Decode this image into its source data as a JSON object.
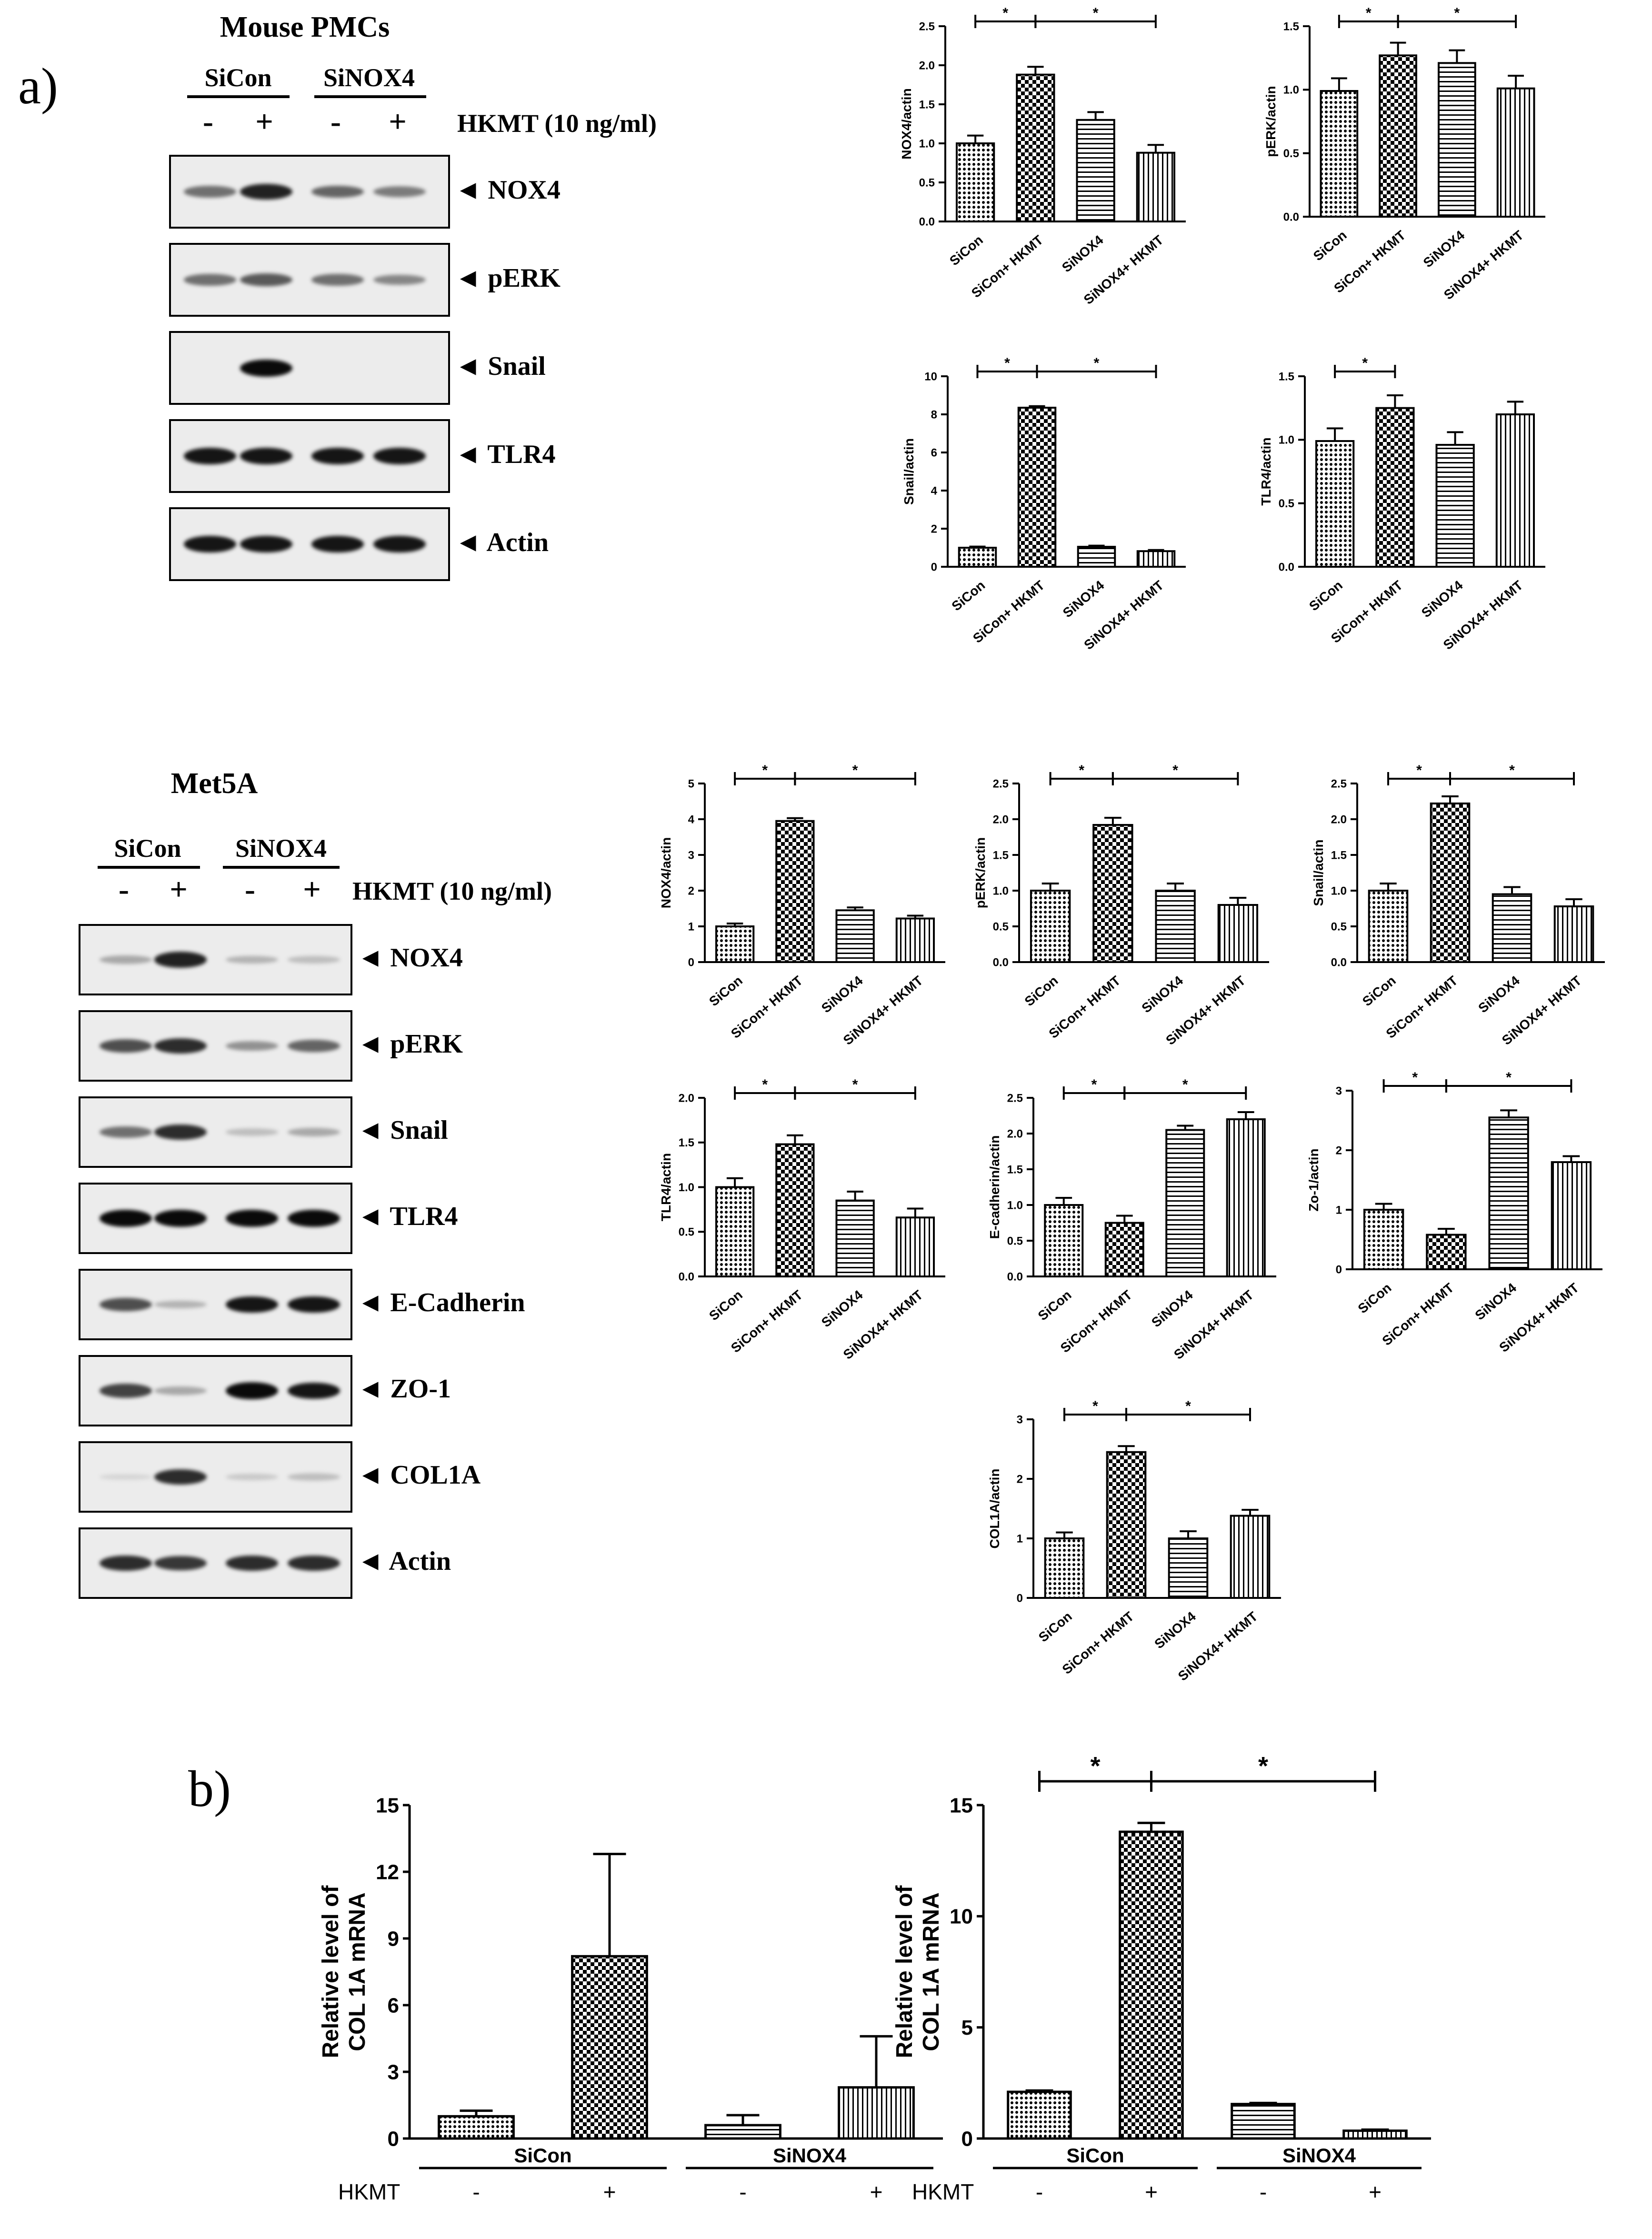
{
  "panels": {
    "a": "a)",
    "b": "b)"
  },
  "pattern_fills": {
    "checker": "#000000",
    "hatch": "#000000",
    "bar_stroke": "#000000"
  },
  "blot_mouse": {
    "title": "Mouse PMCs",
    "group1": "SiCon",
    "group2": "SiNOX4",
    "treatment": "HKMT (10 ng/ml)",
    "signs": [
      "-",
      "+",
      "-",
      "+"
    ],
    "bands": [
      {
        "label": "NOX4",
        "intensities": [
          0.55,
          0.9,
          0.6,
          0.5
        ]
      },
      {
        "label": "pERK",
        "intensities": [
          0.55,
          0.65,
          0.55,
          0.45
        ]
      },
      {
        "label": "Snail",
        "intensities": [
          0.0,
          1.0,
          0.0,
          0.0
        ]
      },
      {
        "label": "TLR4",
        "intensities": [
          0.95,
          0.95,
          0.95,
          0.95
        ]
      },
      {
        "label": "Actin",
        "intensities": [
          0.95,
          0.95,
          0.95,
          0.95
        ]
      }
    ]
  },
  "blot_met5a": {
    "title": "Met5A",
    "group1": "SiCon",
    "group2": "SiNOX4",
    "treatment": "HKMT (10 ng/ml)",
    "signs": [
      "-",
      "+",
      "-",
      "+"
    ],
    "bands": [
      {
        "label": "NOX4",
        "intensities": [
          0.3,
          0.9,
          0.25,
          0.2
        ]
      },
      {
        "label": "pERK",
        "intensities": [
          0.7,
          0.85,
          0.4,
          0.6
        ]
      },
      {
        "label": "Snail",
        "intensities": [
          0.55,
          0.85,
          0.2,
          0.3
        ]
      },
      {
        "label": "TLR4",
        "intensities": [
          1.0,
          1.0,
          1.0,
          1.0
        ]
      },
      {
        "label": "E-Cadherin",
        "intensities": [
          0.7,
          0.25,
          0.95,
          0.95
        ]
      },
      {
        "label": "ZO-1",
        "intensities": [
          0.75,
          0.3,
          1.0,
          0.95
        ]
      },
      {
        "label": "COL1A",
        "intensities": [
          0.1,
          0.85,
          0.15,
          0.2
        ]
      },
      {
        "label": "Actin",
        "intensities": [
          0.85,
          0.8,
          0.85,
          0.85
        ]
      }
    ]
  },
  "chart_data": [
    {
      "type": "bar",
      "ylabel": "NOX4/actin",
      "categories": [
        "SiCon",
        "SiCon+ HKMT",
        "SiNOX4",
        "SiNOX4+ HKMT"
      ],
      "values": [
        1.0,
        1.88,
        1.3,
        0.88
      ],
      "errors": [
        0.1,
        0.1,
        0.1,
        0.1
      ],
      "ylim": [
        0,
        2.5
      ],
      "yticks": [
        "0.0",
        "0.5",
        "1.0",
        "1.5",
        "2.0",
        "2.5"
      ],
      "sig": [
        [
          0,
          1,
          "*"
        ],
        [
          1,
          3,
          "*"
        ]
      ]
    },
    {
      "type": "bar",
      "ylabel": "pERK/actin",
      "categories": [
        "SiCon",
        "SiCon+ HKMT",
        "SiNOX4",
        "SiNOX4+ HKMT"
      ],
      "values": [
        0.99,
        1.27,
        1.21,
        1.01
      ],
      "errors": [
        0.1,
        0.1,
        0.1,
        0.1
      ],
      "ylim": [
        0,
        1.5
      ],
      "yticks": [
        "0.0",
        "0.5",
        "1.0",
        "1.5"
      ],
      "sig": [
        [
          0,
          1,
          "*"
        ],
        [
          1,
          3,
          "*"
        ]
      ]
    },
    {
      "type": "bar",
      "ylabel": "Snail/actin",
      "categories": [
        "SiCon",
        "SiCon+ HKMT",
        "SiNOX4",
        "SiNOX4+ HKMT"
      ],
      "values": [
        1.0,
        8.35,
        1.05,
        0.82
      ],
      "errors": [
        0.06,
        0.08,
        0.06,
        0.06
      ],
      "ylim": [
        0,
        10
      ],
      "yticks": [
        "0",
        "2",
        "4",
        "6",
        "8",
        "10"
      ],
      "sig": [
        [
          0,
          1,
          "*"
        ],
        [
          1,
          3,
          "*"
        ]
      ]
    },
    {
      "type": "bar",
      "ylabel": "TLR4/actin",
      "categories": [
        "SiCon",
        "SiCon+ HKMT",
        "SiNOX4",
        "SiNOX4+ HKMT"
      ],
      "values": [
        0.99,
        1.25,
        0.96,
        1.2
      ],
      "errors": [
        0.1,
        0.1,
        0.1,
        0.1
      ],
      "ylim": [
        0,
        1.5
      ],
      "yticks": [
        "0.0",
        "0.5",
        "1.0",
        "1.5"
      ],
      "sig": [
        [
          0,
          1,
          "*"
        ]
      ]
    },
    {
      "type": "bar",
      "ylabel": "NOX4/actin",
      "categories": [
        "SiCon",
        "SiCon+ HKMT",
        "SiNOX4",
        "SiNOX4+ HKMT"
      ],
      "values": [
        1.0,
        3.95,
        1.45,
        1.22
      ],
      "errors": [
        0.08,
        0.08,
        0.08,
        0.08
      ],
      "ylim": [
        0,
        5
      ],
      "yticks": [
        "0",
        "1",
        "2",
        "3",
        "4",
        "5"
      ],
      "sig": [
        [
          0,
          1,
          "*"
        ],
        [
          1,
          3,
          "*"
        ]
      ]
    },
    {
      "type": "bar",
      "ylabel": "pERK/actin",
      "categories": [
        "SiCon",
        "SiCon+ HKMT",
        "SiNOX4",
        "SiNOX4+ HKMT"
      ],
      "values": [
        1.0,
        1.92,
        1.0,
        0.8
      ],
      "errors": [
        0.1,
        0.1,
        0.1,
        0.1
      ],
      "ylim": [
        0,
        2.5
      ],
      "yticks": [
        "0.0",
        "0.5",
        "1.0",
        "1.5",
        "2.0",
        "2.5"
      ],
      "sig": [
        [
          0,
          1,
          "*"
        ],
        [
          1,
          3,
          "*"
        ]
      ]
    },
    {
      "type": "bar",
      "ylabel": "Snail/actin",
      "categories": [
        "SiCon",
        "SiCon+ HKMT",
        "SiNOX4",
        "SiNOX4+ HKMT"
      ],
      "values": [
        1.0,
        2.22,
        0.95,
        0.78
      ],
      "errors": [
        0.1,
        0.1,
        0.1,
        0.1
      ],
      "ylim": [
        0,
        2.5
      ],
      "yticks": [
        "0.0",
        "0.5",
        "1.0",
        "1.5",
        "2.0",
        "2.5"
      ],
      "sig": [
        [
          0,
          1,
          "*"
        ],
        [
          1,
          3,
          "*"
        ]
      ]
    },
    {
      "type": "bar",
      "ylabel": "TLR4/actin",
      "categories": [
        "SiCon",
        "SiCon+ HKMT",
        "SiNOX4",
        "SiNOX4+ HKMT"
      ],
      "values": [
        1.0,
        1.48,
        0.85,
        0.66
      ],
      "errors": [
        0.1,
        0.1,
        0.1,
        0.1
      ],
      "ylim": [
        0,
        2.0
      ],
      "yticks": [
        "0.0",
        "0.5",
        "1.0",
        "1.5",
        "2.0"
      ],
      "sig": [
        [
          0,
          1,
          "*"
        ],
        [
          1,
          3,
          "*"
        ]
      ]
    },
    {
      "type": "bar",
      "ylabel": "E-cadherin/actin",
      "categories": [
        "SiCon",
        "SiCon+ HKMT",
        "SiNOX4",
        "SiNOX4+ HKMT"
      ],
      "values": [
        1.0,
        0.75,
        2.05,
        2.2
      ],
      "errors": [
        0.1,
        0.1,
        0.06,
        0.1
      ],
      "ylim": [
        0,
        2.5
      ],
      "yticks": [
        "0.0",
        "0.5",
        "1.0",
        "1.5",
        "2.0",
        "2.5"
      ],
      "sig": [
        [
          0,
          1,
          "*"
        ],
        [
          1,
          3,
          "*"
        ]
      ]
    },
    {
      "type": "bar",
      "ylabel": "Zo-1/actin",
      "categories": [
        "SiCon",
        "SiCon+ HKMT",
        "SiNOX4",
        "SiNOX4+ HKMT"
      ],
      "values": [
        1.0,
        0.58,
        2.55,
        1.8
      ],
      "errors": [
        0.1,
        0.1,
        0.12,
        0.1
      ],
      "ylim": [
        0,
        3
      ],
      "yticks": [
        "0",
        "1",
        "2",
        "3"
      ],
      "sig": [
        [
          0,
          1,
          "*"
        ],
        [
          1,
          3,
          "*"
        ]
      ]
    },
    {
      "type": "bar",
      "ylabel": "COL1A/actin",
      "categories": [
        "SiCon",
        "SiCon+ HKMT",
        "SiNOX4",
        "SiNOX4+ HKMT"
      ],
      "values": [
        1.0,
        2.45,
        1.0,
        1.38
      ],
      "errors": [
        0.1,
        0.1,
        0.12,
        0.1
      ],
      "ylim": [
        0,
        3
      ],
      "yticks": [
        "0",
        "1",
        "2",
        "3"
      ],
      "sig": [
        [
          0,
          1,
          "*"
        ],
        [
          1,
          3,
          "*"
        ]
      ]
    },
    {
      "type": "bar",
      "ylabel": [
        "Relative level of",
        "COL 1A mRNA"
      ],
      "categories": [
        "SiCon -",
        "SiCon +",
        "SiNOX4 -",
        "SiNOX4 +"
      ],
      "values": [
        1.0,
        8.2,
        0.6,
        2.3
      ],
      "errors": [
        0.25,
        4.6,
        0.45,
        2.3
      ],
      "ylim": [
        0,
        15
      ],
      "yticks": [
        "0",
        "3",
        "6",
        "9",
        "12",
        "15"
      ],
      "sig": [],
      "groups": [
        "SiCon",
        "SiNOX4"
      ],
      "treatment_label": "HKMT",
      "signs": [
        "-",
        "+",
        "-",
        "+"
      ]
    },
    {
      "type": "bar",
      "ylabel": [
        "Relative level of",
        "COL 1A mRNA"
      ],
      "categories": [
        "SiCon -",
        "SiCon +",
        "SiNOX4 -",
        "SiNOX4 +"
      ],
      "values": [
        2.1,
        13.8,
        1.55,
        0.35
      ],
      "errors": [
        0.06,
        0.4,
        0.05,
        0.05
      ],
      "ylim": [
        0,
        15
      ],
      "yticks": [
        "0",
        "5",
        "10",
        "15"
      ],
      "sig": [
        [
          0,
          1,
          "*"
        ],
        [
          1,
          3,
          "*"
        ]
      ],
      "groups": [
        "SiCon",
        "SiNOX4"
      ],
      "treatment_label": "HKMT",
      "signs": [
        "-",
        "+",
        "-",
        "+"
      ]
    }
  ]
}
